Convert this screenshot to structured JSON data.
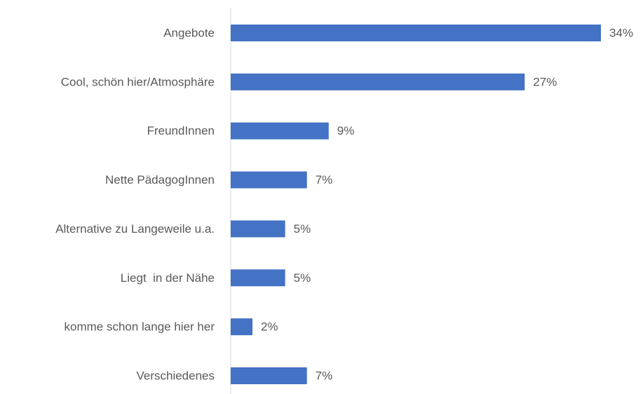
{
  "chart_data": {
    "type": "bar",
    "orientation": "horizontal",
    "categories": [
      "Angebote",
      "Cool, schön hier/Atmosphäre",
      "FreundInnen",
      "Nette PädagogInnen",
      "Alternative zu Langeweile u.a.",
      "Liegt  in der Nähe",
      "komme schon lange hier her",
      "Verschiedenes"
    ],
    "values": [
      34,
      27,
      9,
      7,
      5,
      5,
      2,
      7
    ],
    "value_labels": [
      "34%",
      "27%",
      "9%",
      "7%",
      "5%",
      "5%",
      "2%",
      "7%"
    ],
    "color": "#4472c4"
  }
}
